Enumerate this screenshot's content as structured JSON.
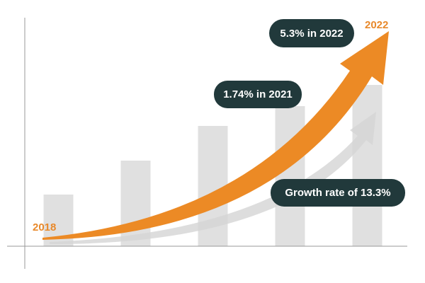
{
  "chart_data": {
    "type": "bar",
    "categories": [
      null,
      null,
      null,
      null,
      null
    ],
    "values": [
      73,
      121,
      170,
      198,
      228
    ],
    "color": "#e0e0e0",
    "ylim": [
      0,
      250
    ],
    "annotations": [
      "2018",
      "2022",
      "5.3% in 2022",
      "1.74% in 2021",
      "Growth rate of 13.3%"
    ]
  }
}
